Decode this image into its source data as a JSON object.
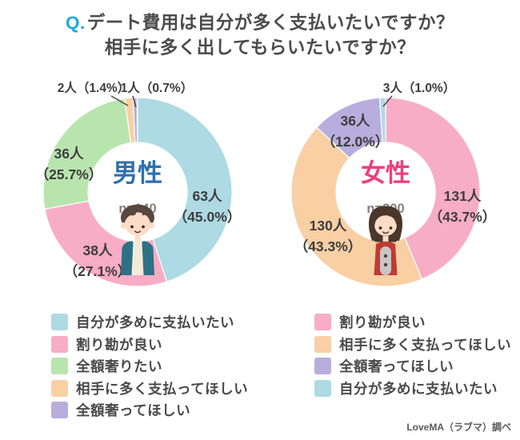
{
  "title": {
    "q_prefix": "Q.",
    "line1": "デート費用は自分が多く支払いたいですか？",
    "line2": "相手に多く出してもらいたいですか？",
    "q_color": "#1ca9e8",
    "text_color": "#4b4b4b"
  },
  "source_note": "LoveMA（ラブマ）調べ",
  "chart_data": [
    {
      "type": "pie",
      "donut": true,
      "group_label": "男性",
      "group_color": "#2e6fae",
      "sample_size": 140,
      "sample_size_label": "n=140",
      "legend_position": "below-left",
      "slices": [
        {
          "label": "自分が多めに支払いたい",
          "count": 63,
          "percent": 45.0,
          "count_label": "63人",
          "percent_label": "（45.0%）",
          "color": "#aedae3"
        },
        {
          "label": "割り勘が良い",
          "count": 38,
          "percent": 27.1,
          "count_label": "38人",
          "percent_label": "（27.1%）",
          "color": "#f7adc5"
        },
        {
          "label": "全額奢りたい",
          "count": 36,
          "percent": 25.7,
          "count_label": "36人",
          "percent_label": "（25.7%）",
          "color": "#b8e5ae"
        },
        {
          "label": "相手に多く支払ってほしい",
          "count": 2,
          "percent": 1.4,
          "count_label": "2人",
          "percent_label": "（1.4%）",
          "color": "#f9cfa4"
        },
        {
          "label": "全額奢ってほしい",
          "count": 1,
          "percent": 0.7,
          "count_label": "1人",
          "percent_label": "（0.7%）",
          "color": "#b7aedd"
        }
      ]
    },
    {
      "type": "pie",
      "donut": true,
      "group_label": "女性",
      "group_color": "#ee3e7c",
      "sample_size": 300,
      "sample_size_label": "n=300",
      "legend_position": "below-right",
      "slices": [
        {
          "label": "割り勘が良い",
          "count": 131,
          "percent": 43.7,
          "count_label": "131人",
          "percent_label": "（43.7%）",
          "color": "#f7adc5"
        },
        {
          "label": "相手に多く支払ってほしい",
          "count": 130,
          "percent": 43.3,
          "count_label": "130人",
          "percent_label": "（43.3%）",
          "color": "#f9cfa4"
        },
        {
          "label": "全額奢ってほしい",
          "count": 36,
          "percent": 12.0,
          "count_label": "36人",
          "percent_label": "（12.0%）",
          "color": "#b7aedd"
        },
        {
          "label": "自分が多めに支払いたい",
          "count": 3,
          "percent": 1.0,
          "count_label": "3人",
          "percent_label": "（1.0%）",
          "color": "#aedae3"
        }
      ]
    }
  ]
}
